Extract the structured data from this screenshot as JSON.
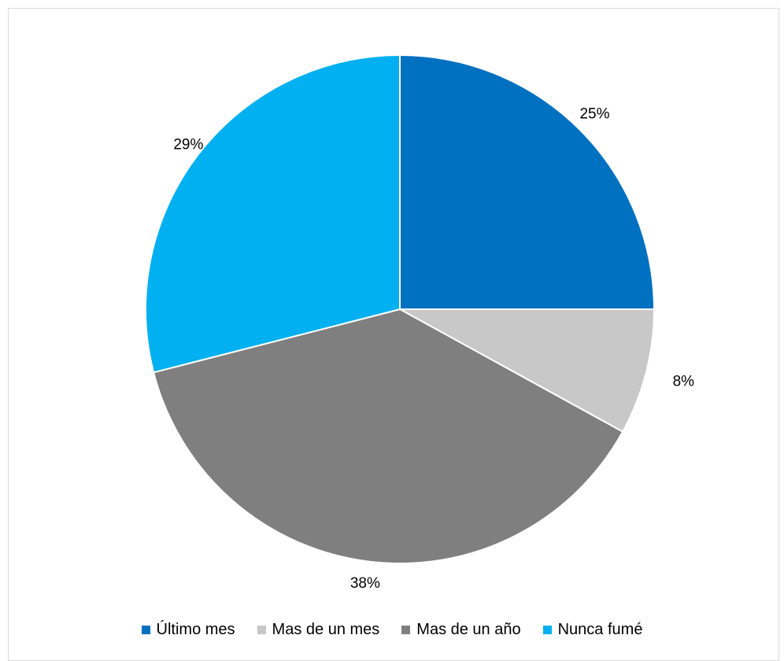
{
  "chart_data": {
    "type": "pie",
    "title": "",
    "categories": [
      "Último mes",
      "Mas de un mes",
      "Mas de un año",
      "Nunca fumé"
    ],
    "values": [
      25,
      8,
      38,
      29
    ],
    "labels": [
      "25%",
      "8%",
      "38%",
      "29%"
    ],
    "colors": [
      "#0070C0",
      "#C8C8C8",
      "#7F7F7F",
      "#00B0F0"
    ],
    "start_angle": "12 o'clock",
    "direction": "clockwise",
    "legend_position": "bottom"
  },
  "legend": {
    "items": [
      {
        "label": "Último mes",
        "color": "#0070C0"
      },
      {
        "label": "Mas de un mes",
        "color": "#C8C8C8"
      },
      {
        "label": "Mas de un año",
        "color": "#7F7F7F"
      },
      {
        "label": "Nunca fumé",
        "color": "#00B0F0"
      }
    ]
  }
}
